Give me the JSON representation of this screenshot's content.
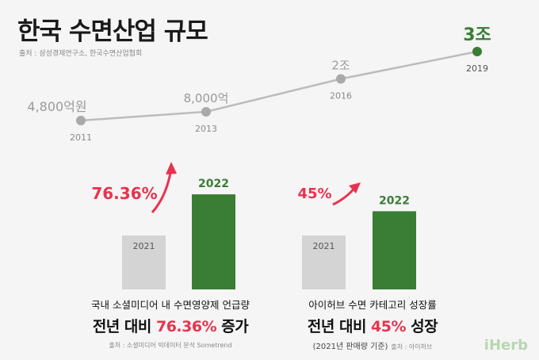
{
  "title": "한국 수면산업 규모",
  "source_top": "출처 : 삼성경제연구소, 한국수면산업협회",
  "colors": {
    "green": "#3a7d35",
    "gray_line": "#bcbcbc",
    "gray_bar": "#d4d4d4",
    "pink": "#e8334f",
    "text_gray": "#8a8a8a"
  },
  "chart_data": [
    {
      "type": "line",
      "x": [
        "2011",
        "2013",
        "2016",
        "2019"
      ],
      "values_label": [
        "4,800억원",
        "8,000억",
        "2조",
        "3조"
      ],
      "y": [
        0.48,
        0.8,
        2,
        3
      ],
      "y_unit": "조원"
    },
    {
      "type": "bar",
      "categories": [
        "2021",
        "2022"
      ],
      "growth_label": "76.36%",
      "values": [
        100,
        176.36
      ]
    },
    {
      "type": "bar",
      "categories": [
        "2021",
        "2022"
      ],
      "growth_label": "45%",
      "values": [
        100,
        145
      ]
    }
  ],
  "caption_left": {
    "line1": "국내 소셜미디어 내 수면영양제 언급량",
    "line2_pre": "전년 대비 ",
    "line2_hl": "76.36%",
    "line2_post": " 증가",
    "note": "출처 : 소셜미디어 빅데이터 분석 Sometrend"
  },
  "caption_right": {
    "line1": "아이허브 수면 카테고리 성장률",
    "line2_pre": "전년 대비 ",
    "line2_hl": "45%",
    "line2_post": " 성장",
    "note_main": "(2021년 판매량 기준)",
    "note_small": "출처 : 아이허브"
  },
  "logo": "iHerb"
}
